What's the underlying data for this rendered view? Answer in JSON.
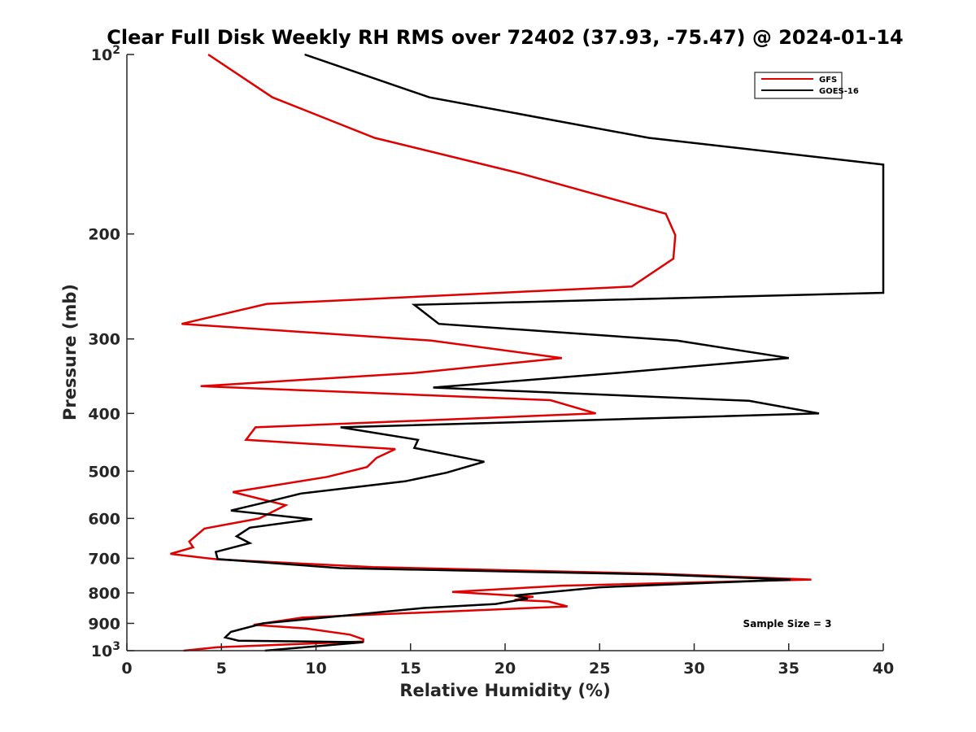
{
  "chart_data": {
    "type": "line",
    "title": "Clear Full Disk Weekly RH RMS over 72402 (37.93, -75.47) @ 2024-01-14",
    "xlabel": "Relative Humidity (%)",
    "ylabel": "Pressure (mb)",
    "xlim": [
      0,
      40
    ],
    "ylim": [
      100,
      1000
    ],
    "y_scale": "log",
    "y_reversed": true,
    "x_ticks": [
      0,
      5,
      10,
      15,
      20,
      25,
      30,
      35,
      40
    ],
    "x_tick_labels": [
      "0",
      "5",
      "10",
      "15",
      "20",
      "25",
      "30",
      "35",
      "40"
    ],
    "y_ticks": [
      100,
      200,
      300,
      400,
      500,
      600,
      700,
      800,
      900,
      1000
    ],
    "y_tick_labels": [
      {
        "base": "10",
        "exp": "2"
      },
      {
        "base": "200",
        "exp": ""
      },
      {
        "base": "300",
        "exp": ""
      },
      {
        "base": "400",
        "exp": ""
      },
      {
        "base": "500",
        "exp": ""
      },
      {
        "base": "600",
        "exp": ""
      },
      {
        "base": "700",
        "exp": ""
      },
      {
        "base": "800",
        "exp": ""
      },
      {
        "base": "900",
        "exp": ""
      },
      {
        "base": "10",
        "exp": "3"
      }
    ],
    "legend_position": "top-right",
    "annotation": "Sample Size = 3",
    "series": [
      {
        "name": "GFS",
        "color": "#e00000",
        "points": [
          {
            "x": 4.3,
            "p": 100
          },
          {
            "x": 7.7,
            "p": 118
          },
          {
            "x": 13.1,
            "p": 138
          },
          {
            "x": 20.7,
            "p": 158
          },
          {
            "x": 28.5,
            "p": 185
          },
          {
            "x": 29.0,
            "p": 201
          },
          {
            "x": 28.9,
            "p": 220
          },
          {
            "x": 26.7,
            "p": 245
          },
          {
            "x": 7.4,
            "p": 262
          },
          {
            "x": 2.9,
            "p": 283
          },
          {
            "x": 16.1,
            "p": 302
          },
          {
            "x": 23.0,
            "p": 323
          },
          {
            "x": 15.3,
            "p": 342
          },
          {
            "x": 3.9,
            "p": 360
          },
          {
            "x": 22.4,
            "p": 380
          },
          {
            "x": 24.8,
            "p": 400
          },
          {
            "x": 6.8,
            "p": 422
          },
          {
            "x": 6.3,
            "p": 443
          },
          {
            "x": 14.2,
            "p": 459
          },
          {
            "x": 13.2,
            "p": 475
          },
          {
            "x": 12.7,
            "p": 492
          },
          {
            "x": 10.6,
            "p": 511
          },
          {
            "x": 5.6,
            "p": 542
          },
          {
            "x": 8.4,
            "p": 570
          },
          {
            "x": 7.0,
            "p": 600
          },
          {
            "x": 4.1,
            "p": 624
          },
          {
            "x": 3.3,
            "p": 656
          },
          {
            "x": 3.5,
            "p": 671
          },
          {
            "x": 2.3,
            "p": 688
          },
          {
            "x": 4.8,
            "p": 703
          },
          {
            "x": 13.0,
            "p": 724
          },
          {
            "x": 28.0,
            "p": 743
          },
          {
            "x": 36.2,
            "p": 760
          },
          {
            "x": 23.0,
            "p": 778
          },
          {
            "x": 17.2,
            "p": 797
          },
          {
            "x": 21.5,
            "p": 812
          },
          {
            "x": 20.5,
            "p": 822
          },
          {
            "x": 22.3,
            "p": 827
          },
          {
            "x": 23.3,
            "p": 843
          },
          {
            "x": 9.3,
            "p": 880
          },
          {
            "x": 6.7,
            "p": 905
          },
          {
            "x": 9.5,
            "p": 918
          },
          {
            "x": 11.8,
            "p": 940
          },
          {
            "x": 12.5,
            "p": 957
          },
          {
            "x": 12.5,
            "p": 965
          },
          {
            "x": 4.8,
            "p": 987
          },
          {
            "x": 3.0,
            "p": 1000
          }
        ]
      },
      {
        "name": "GOES-16",
        "color": "#000000",
        "points": [
          {
            "x": 9.4,
            "p": 100
          },
          {
            "x": 16.0,
            "p": 118
          },
          {
            "x": 27.6,
            "p": 138
          },
          {
            "x": 40.0,
            "p": 153
          },
          {
            "x": 40.0,
            "p": 251
          },
          {
            "x": 15.2,
            "p": 263
          },
          {
            "x": 16.5,
            "p": 283
          },
          {
            "x": 29.1,
            "p": 302
          },
          {
            "x": 35.0,
            "p": 323
          },
          {
            "x": 26.0,
            "p": 342
          },
          {
            "x": 16.2,
            "p": 362
          },
          {
            "x": 32.9,
            "p": 381
          },
          {
            "x": 36.6,
            "p": 400
          },
          {
            "x": 11.3,
            "p": 422
          },
          {
            "x": 15.4,
            "p": 443
          },
          {
            "x": 15.2,
            "p": 457
          },
          {
            "x": 18.9,
            "p": 482
          },
          {
            "x": 16.9,
            "p": 503
          },
          {
            "x": 14.7,
            "p": 520
          },
          {
            "x": 9.2,
            "p": 545
          },
          {
            "x": 7.2,
            "p": 565
          },
          {
            "x": 5.5,
            "p": 582
          },
          {
            "x": 9.8,
            "p": 602
          },
          {
            "x": 6.5,
            "p": 622
          },
          {
            "x": 5.8,
            "p": 643
          },
          {
            "x": 6.5,
            "p": 660
          },
          {
            "x": 4.7,
            "p": 683
          },
          {
            "x": 4.8,
            "p": 702
          },
          {
            "x": 11.3,
            "p": 727
          },
          {
            "x": 28.0,
            "p": 745
          },
          {
            "x": 35.1,
            "p": 760
          },
          {
            "x": 25.0,
            "p": 783
          },
          {
            "x": 20.5,
            "p": 808
          },
          {
            "x": 21.2,
            "p": 818
          },
          {
            "x": 19.5,
            "p": 835
          },
          {
            "x": 15.7,
            "p": 848
          },
          {
            "x": 7.2,
            "p": 900
          },
          {
            "x": 5.5,
            "p": 930
          },
          {
            "x": 5.2,
            "p": 950
          },
          {
            "x": 5.9,
            "p": 962
          },
          {
            "x": 12.5,
            "p": 968
          },
          {
            "x": 7.3,
            "p": 1000
          }
        ]
      }
    ]
  }
}
